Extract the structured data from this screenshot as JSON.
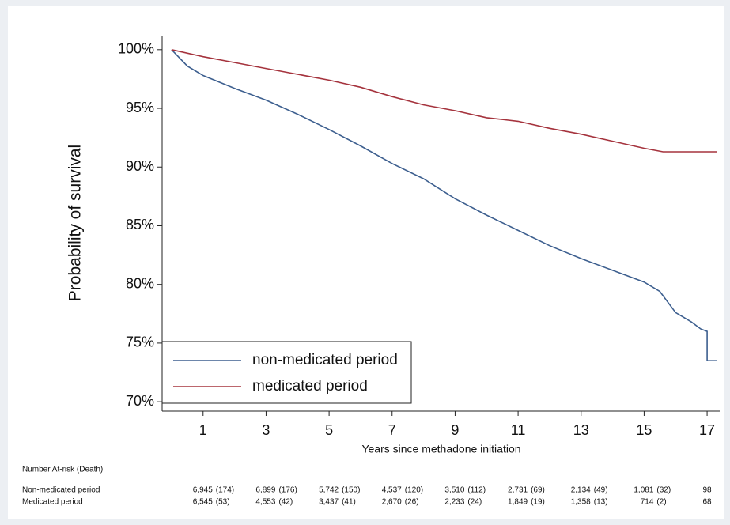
{
  "chart_data": {
    "type": "line",
    "y_label": "Probability of survival",
    "x_label": "Years since methadone initiation",
    "xlim": [
      -0.3,
      17.4
    ],
    "ylim": [
      69.2,
      101.2
    ],
    "xticks": [
      1,
      3,
      5,
      7,
      9,
      11,
      13,
      15,
      17
    ],
    "yticks": [
      {
        "value": 100,
        "label": "100%"
      },
      {
        "value": 95,
        "label": "95%"
      },
      {
        "value": 90,
        "label": "90%"
      },
      {
        "value": 85,
        "label": "85%"
      },
      {
        "value": 80,
        "label": "80%"
      },
      {
        "value": 75,
        "label": "75%"
      },
      {
        "value": 70,
        "label": "70%"
      }
    ],
    "grid": false,
    "legend": "lower left",
    "series": [
      {
        "name": "non-medicated period",
        "color": "#3d5f8f",
        "x": [
          0,
          0.5,
          1,
          2,
          3,
          4,
          5,
          6,
          7,
          8,
          9,
          10,
          11,
          12,
          13,
          14,
          15,
          15.5,
          16,
          16.5,
          16.8,
          17,
          17,
          17.3
        ],
        "values": [
          100,
          98.6,
          97.8,
          96.7,
          95.7,
          94.5,
          93.2,
          91.8,
          90.3,
          89.0,
          87.3,
          85.9,
          84.6,
          83.3,
          82.2,
          81.2,
          80.2,
          79.4,
          77.6,
          76.8,
          76.2,
          76.0,
          73.5,
          73.5
        ]
      },
      {
        "name": "medicated period",
        "color": "#a5333d",
        "x": [
          0,
          1,
          2,
          3,
          4,
          5,
          6,
          7,
          8,
          9,
          10,
          11,
          12,
          13,
          14,
          15,
          15.6,
          17.3
        ],
        "values": [
          100,
          99.4,
          98.9,
          98.4,
          97.9,
          97.4,
          96.8,
          96.0,
          95.3,
          94.8,
          94.2,
          93.9,
          93.3,
          92.8,
          92.2,
          91.6,
          91.3,
          91.3
        ]
      }
    ]
  },
  "risk_table": {
    "title": "Number At-risk (Death)",
    "rows": [
      {
        "label": "Non-medicated period",
        "cells": [
          {
            "at_risk": "6,945",
            "deaths": "(174)"
          },
          {
            "at_risk": "6,899",
            "deaths": "(176)"
          },
          {
            "at_risk": "5,742",
            "deaths": "(150)"
          },
          {
            "at_risk": "4,537",
            "deaths": "(120)"
          },
          {
            "at_risk": "3,510",
            "deaths": "(112)"
          },
          {
            "at_risk": "2,731",
            "deaths": "(69)"
          },
          {
            "at_risk": "2,134",
            "deaths": "(49)"
          },
          {
            "at_risk": "1,081",
            "deaths": "(32)"
          },
          {
            "at_risk": "98"
          }
        ]
      },
      {
        "label": "Medicated period",
        "cells": [
          {
            "at_risk": "6,545",
            "deaths": "(53)"
          },
          {
            "at_risk": "4,553",
            "deaths": "(42)"
          },
          {
            "at_risk": "3,437",
            "deaths": "(41)"
          },
          {
            "at_risk": "2,670",
            "deaths": "(26)"
          },
          {
            "at_risk": "2,233",
            "deaths": "(24)"
          },
          {
            "at_risk": "1,849",
            "deaths": "(19)"
          },
          {
            "at_risk": "1,358",
            "deaths": "(13)"
          },
          {
            "at_risk": "714",
            "deaths": "(2)"
          },
          {
            "at_risk": "68"
          }
        ]
      }
    ]
  }
}
